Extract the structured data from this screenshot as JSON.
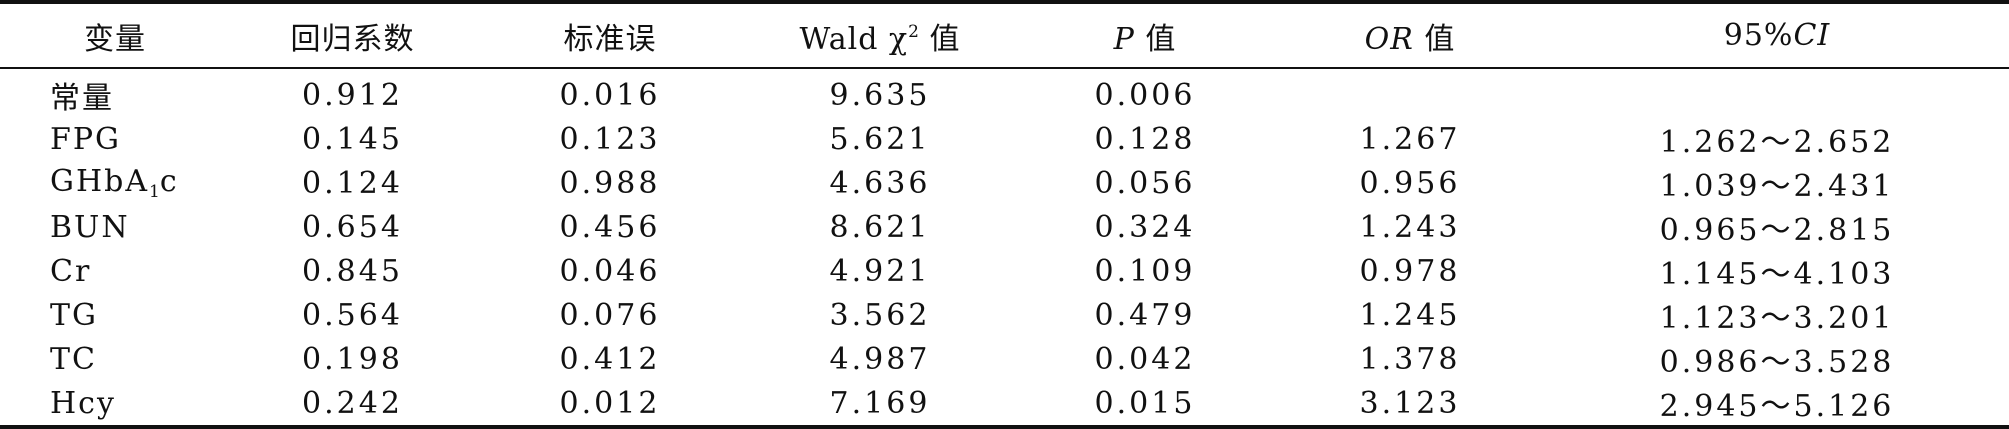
{
  "table": {
    "headers": {
      "variable": "变量",
      "coefficient": "回归系数",
      "std_error": "标准误",
      "wald_prefix": "Wald χ",
      "wald_sup": "2",
      "wald_suffix": " 值",
      "p_italic": "P",
      "p_suffix": " 值",
      "or_italic": "OR",
      "or_suffix": " 值",
      "ci_prefix": "95%",
      "ci_italic": "CI"
    },
    "rows": [
      {
        "variable": "常量",
        "coefficient": "0.912",
        "std_error": "0.016",
        "wald": "9.635",
        "p": "0.006",
        "or": "",
        "ci": ""
      },
      {
        "variable": "FPG",
        "coefficient": "0.145",
        "std_error": "0.123",
        "wald": "5.621",
        "p": "0.128",
        "or": "1.267",
        "ci": "1.262～2.652"
      },
      {
        "variable": "GHbA",
        "variable_sub": "1",
        "variable_tail": "c",
        "coefficient": "0.124",
        "std_error": "0.988",
        "wald": "4.636",
        "p": "0.056",
        "or": "0.956",
        "ci": "1.039～2.431"
      },
      {
        "variable": "BUN",
        "coefficient": "0.654",
        "std_error": "0.456",
        "wald": "8.621",
        "p": "0.324",
        "or": "1.243",
        "ci": "0.965～2.815"
      },
      {
        "variable": "Cr",
        "coefficient": "0.845",
        "std_error": "0.046",
        "wald": "4.921",
        "p": "0.109",
        "or": "0.978",
        "ci": "1.145～4.103"
      },
      {
        "variable": "TG",
        "coefficient": "0.564",
        "std_error": "0.076",
        "wald": "3.562",
        "p": "0.479",
        "or": "1.245",
        "ci": "1.123～3.201"
      },
      {
        "variable": "TC",
        "coefficient": "0.198",
        "std_error": "0.412",
        "wald": "4.987",
        "p": "0.042",
        "or": "1.378",
        "ci": "0.986～3.528"
      },
      {
        "variable": "Hcy",
        "coefficient": "0.242",
        "std_error": "0.012",
        "wald": "7.169",
        "p": "0.015",
        "or": "3.123",
        "ci": "2.945～5.126"
      }
    ]
  }
}
